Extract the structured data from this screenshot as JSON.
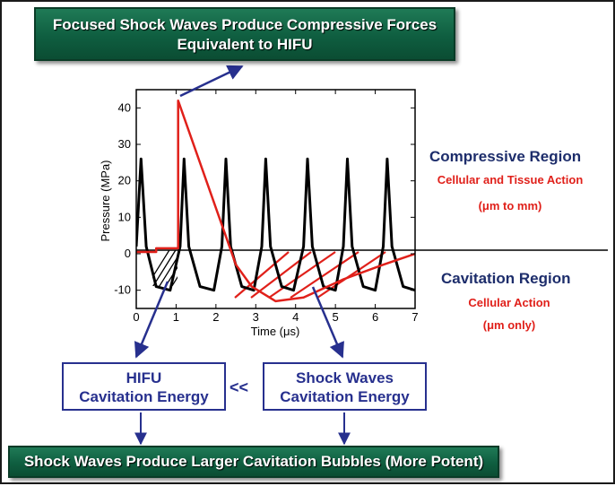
{
  "banners": {
    "top_line1": "Focused Shock Waves Produce Compressive Forces",
    "top_line2": "Equivalent to HIFU",
    "bottom": "Shock Waves Produce Larger Cavitation Bubbles (More Potent)"
  },
  "boxes": {
    "hifu_line1": "HIFU",
    "hifu_line2": "Cavitation Energy",
    "shock_line1": "Shock Waves",
    "shock_line2": "Cavitation Energy",
    "comparison": "<<"
  },
  "regions": {
    "compressive_title": "Compressive Region",
    "compressive_note1": "Cellular and Tissue Action",
    "compressive_note2": "(μm to mm)",
    "cavitation_title": "Cavitation Region",
    "cavitation_note1": "Cellular Action",
    "cavitation_note2": "(μm only)"
  },
  "colors": {
    "banner_green": "#0f5e40",
    "box_blue": "#27308e",
    "title_navy": "#1d2d6b",
    "red": "#e0201a"
  },
  "chart_data": {
    "type": "line",
    "xlabel": "Time (μs)",
    "ylabel": "Pressure (MPa)",
    "xlim": [
      0,
      7
    ],
    "ylim": [
      -15,
      45
    ],
    "x_ticks": [
      "0",
      "1",
      "2",
      "3",
      "4",
      "5",
      "6",
      "7"
    ],
    "y_ticks": [
      "-10",
      "0",
      "10",
      "20",
      "30",
      "40"
    ],
    "series": [
      {
        "color": "#000000",
        "description": "periodic pulses (HIFU)",
        "points": [
          [
            0,
            2
          ],
          [
            0.12,
            26
          ],
          [
            0.25,
            2
          ],
          [
            0.5,
            -9
          ],
          [
            0.85,
            -10
          ],
          [
            1.1,
            2
          ],
          [
            1.2,
            26
          ],
          [
            1.32,
            2
          ],
          [
            1.6,
            -9
          ],
          [
            1.95,
            -10
          ],
          [
            2.15,
            2
          ],
          [
            2.25,
            26
          ],
          [
            2.37,
            2
          ],
          [
            2.65,
            -9
          ],
          [
            2.95,
            -10
          ],
          [
            3.15,
            2
          ],
          [
            3.25,
            26
          ],
          [
            3.37,
            2
          ],
          [
            3.65,
            -9
          ],
          [
            3.95,
            -10
          ],
          [
            4.2,
            2
          ],
          [
            4.3,
            26
          ],
          [
            4.42,
            2
          ],
          [
            4.7,
            -9
          ],
          [
            5.0,
            -10
          ],
          [
            5.2,
            2
          ],
          [
            5.3,
            26
          ],
          [
            5.42,
            2
          ],
          [
            5.7,
            -9
          ],
          [
            6.0,
            -10
          ],
          [
            6.2,
            2
          ],
          [
            6.3,
            26
          ],
          [
            6.42,
            2
          ],
          [
            6.7,
            -9
          ],
          [
            7.0,
            -10
          ]
        ]
      },
      {
        "color": "#e0201a",
        "description": "shock wave",
        "points": [
          [
            0,
            0.5
          ],
          [
            0.5,
            0.5
          ],
          [
            0.5,
            1.5
          ],
          [
            1.05,
            1.5
          ],
          [
            1.05,
            42
          ],
          [
            2.5,
            -3
          ],
          [
            2.9,
            -9
          ],
          [
            3.5,
            -13
          ],
          [
            4.2,
            -12
          ],
          [
            5.2,
            -7
          ],
          [
            6.2,
            -3
          ],
          [
            7,
            0
          ]
        ]
      }
    ]
  }
}
